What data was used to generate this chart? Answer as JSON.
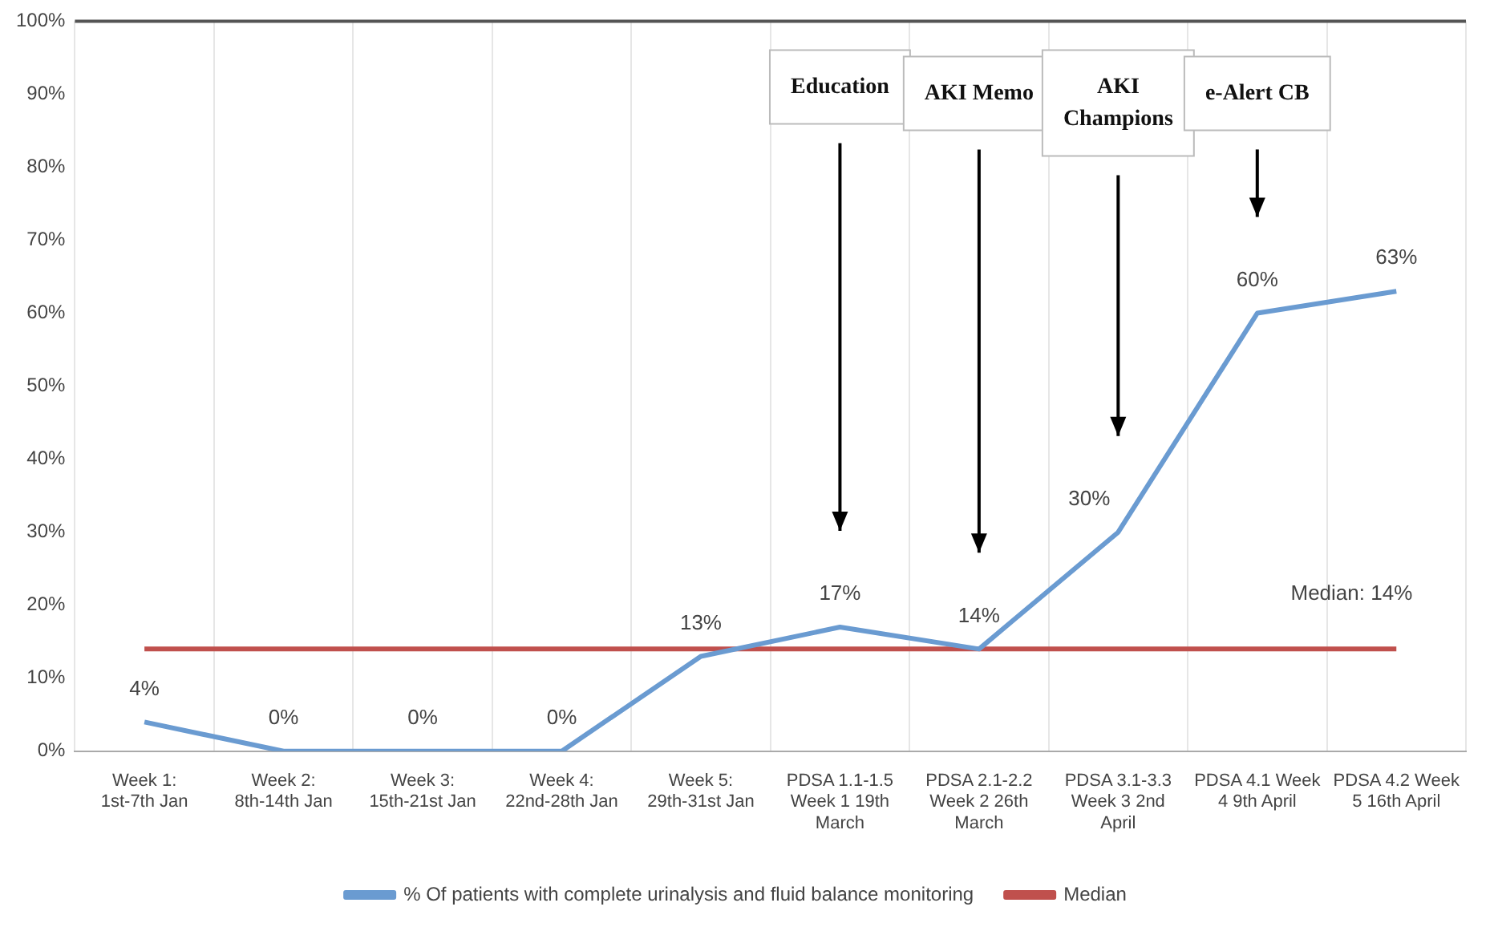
{
  "chart_data": {
    "type": "line",
    "categories": [
      "Week 1: 1st-7th Jan",
      "Week 2: 8th-14th Jan",
      "Week 3: 15th-21st Jan",
      "Week 4: 22nd-28th Jan",
      "Week 5: 29th-31st Jan",
      "PDSA 1.1-1.5 Week 1 19th March",
      "PDSA 2.1-2.2 Week 2 26th March",
      "PDSA 3.1-3.3 Week 3 2nd April",
      "PDSA 4.1 Week 4 9th April",
      "PDSA 4.2 Week 5 16th April"
    ],
    "series": [
      {
        "name": "% Of patients with complete urinalysis and fluid balance monitoring",
        "color": "#6a9bd1",
        "values": [
          4,
          0,
          0,
          0,
          13,
          17,
          14,
          30,
          60,
          63
        ],
        "value_labels": [
          "4%",
          "0%",
          "0%",
          "0%",
          "13%",
          "17%",
          "14%",
          "30%",
          "60%",
          "63%"
        ]
      },
      {
        "name": "Median",
        "color": "#c0504d",
        "values": [
          14,
          14,
          14,
          14,
          14,
          14,
          14,
          14,
          14,
          14
        ]
      }
    ],
    "ylim": [
      0,
      100
    ],
    "yticks": [
      {
        "value": 0,
        "label": "0%"
      },
      {
        "value": 10,
        "label": "10%"
      },
      {
        "value": 20,
        "label": "20%"
      },
      {
        "value": 30,
        "label": "30%"
      },
      {
        "value": 40,
        "label": "40%"
      },
      {
        "value": 50,
        "label": "50%"
      },
      {
        "value": 60,
        "label": "60%"
      },
      {
        "value": 70,
        "label": "70%"
      },
      {
        "value": 80,
        "label": "80%"
      },
      {
        "value": 90,
        "label": "90%"
      },
      {
        "value": 100,
        "label": "100%"
      }
    ],
    "grid": "x",
    "legend": "bottom",
    "marker": "none",
    "line_style": "solid",
    "annotations": [
      "Education",
      "AKI Memo",
      "AKI Champions",
      "e-Alert CB",
      "Median: 14%"
    ]
  }
}
